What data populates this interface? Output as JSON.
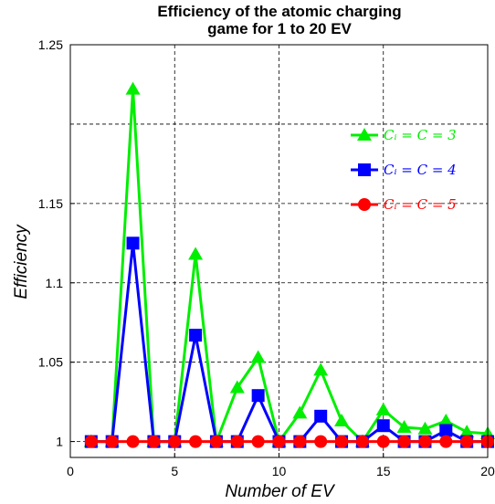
{
  "chart_data": {
    "type": "line",
    "title_line1": "Efficiency of the atomic charging",
    "title_line2": "game for 1 to 20 EV",
    "xlabel": "Number of EV",
    "ylabel": "Efficiency",
    "xlim": [
      0,
      20
    ],
    "ylim": [
      0.99,
      1.25
    ],
    "xticks": [
      "0",
      "5",
      "10",
      "15",
      "20"
    ],
    "yticks": [
      "1",
      "1.05",
      "1.1",
      "1.15",
      "1.25"
    ],
    "ytick_values": [
      1,
      1.05,
      1.1,
      1.15,
      1.25
    ],
    "grid": true,
    "legend_position": "top-right",
    "x": [
      1,
      2,
      3,
      4,
      5,
      6,
      7,
      8,
      9,
      10,
      11,
      12,
      13,
      14,
      15,
      16,
      17,
      18,
      19,
      20
    ],
    "series": [
      {
        "name": "C_i = C = 3",
        "label": "Cᵢ = C = 3",
        "color": "#00ee00",
        "marker": "triangle",
        "values": [
          1,
          1,
          1.222,
          1,
          1,
          1.118,
          1,
          1.034,
          1.053,
          1,
          1.018,
          1.045,
          1.013,
          1,
          1.02,
          1.009,
          1.008,
          1.013,
          1.006,
          1.005
        ]
      },
      {
        "name": "C_i = C = 4",
        "label": "Cᵢ = C = 4",
        "color": "#0000ff",
        "marker": "square",
        "values": [
          1,
          1,
          1.125,
          1,
          1,
          1.067,
          1,
          1,
          1.029,
          1,
          1,
          1.016,
          1,
          1,
          1.01,
          1,
          1,
          1.007,
          1,
          1
        ]
      },
      {
        "name": "C_i = C = 5",
        "label": "Cᵢ = C = 5",
        "color": "#ff0000",
        "marker": "circle",
        "values": [
          1,
          1,
          1,
          1,
          1,
          1,
          1,
          1,
          1,
          1,
          1,
          1,
          1,
          1,
          1,
          1,
          1,
          1,
          1,
          1
        ]
      }
    ]
  }
}
